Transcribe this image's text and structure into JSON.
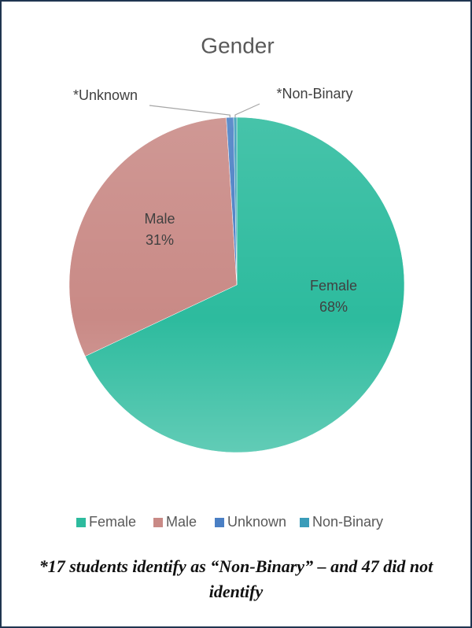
{
  "chart_data": {
    "type": "pie",
    "title": "Gender",
    "categories": [
      "Female",
      "Male",
      "Unknown",
      "Non-Binary"
    ],
    "values": [
      68,
      31,
      0.7,
      0.3
    ],
    "value_labels": [
      "68%",
      "31%",
      null,
      null
    ],
    "slice_labels": [
      "Female",
      "Male",
      "*Unknown",
      "*Non-Binary"
    ],
    "colors": [
      "#2dbb9e",
      "#c98a86",
      "#4a7fc4",
      "#3a9cb9"
    ],
    "legend": "bottom",
    "note": "*17 students identify as “Non-Binary” – and 47 did not identify"
  }
}
